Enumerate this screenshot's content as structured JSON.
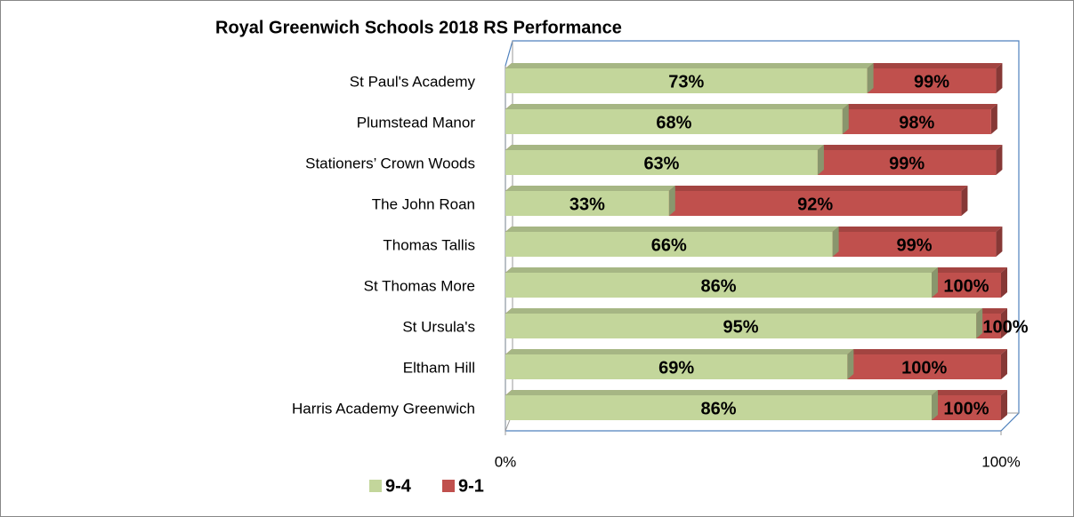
{
  "chart_data": {
    "type": "bar",
    "orientation": "horizontal",
    "overlap": true,
    "title": "Royal Greenwich Schools 2018 RS Performance",
    "categories": [
      "St Paul's Academy",
      "Plumstead Manor",
      "Stationers’ Crown Woods",
      "The John Roan",
      "Thomas Tallis",
      "St Thomas More",
      "St Ursula's",
      "Eltham Hill",
      "Harris Academy Greenwich"
    ],
    "series": [
      {
        "name": "9-4",
        "color": "#c3d69b",
        "values": [
          73,
          68,
          63,
          33,
          66,
          86,
          95,
          69,
          86
        ],
        "value_labels": [
          "73%",
          "68%",
          "63%",
          "33%",
          "66%",
          "86%",
          "95%",
          "69%",
          "86%"
        ]
      },
      {
        "name": "9-1",
        "color": "#c0504d",
        "values": [
          99,
          98,
          99,
          92,
          99,
          100,
          100,
          100,
          100
        ],
        "value_labels": [
          "99%",
          "98%",
          "99%",
          "92%",
          "99%",
          "100%",
          "100%",
          "100%",
          "100%"
        ]
      }
    ],
    "xlim": [
      0,
      100
    ],
    "xticks": [
      {
        "value": 0,
        "label": "0%"
      },
      {
        "value": 100,
        "label": "100%"
      }
    ],
    "legend": "bottom-left"
  }
}
